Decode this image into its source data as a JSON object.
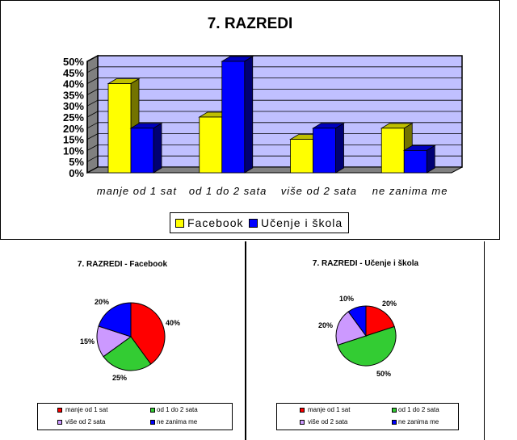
{
  "chart_data": [
    {
      "type": "bar",
      "title": "7. RAZREDI",
      "categories": [
        "manje od 1 sat",
        "od 1 do 2 sata",
        "više od 2 sata",
        "ne zanima me"
      ],
      "series": [
        {
          "name": "Facebook",
          "values": [
            40,
            25,
            15,
            20
          ],
          "color": "#ffff00"
        },
        {
          "name": "Učenje i škola",
          "values": [
            20,
            50,
            20,
            10
          ],
          "color": "#0000ff"
        }
      ],
      "ylim": [
        0,
        50
      ],
      "yticks": [
        "0%",
        "5%",
        "10%",
        "15%",
        "20%",
        "25%",
        "30%",
        "35%",
        "40%",
        "45%",
        "50%"
      ],
      "grid": true,
      "legend": "bottom"
    },
    {
      "type": "pie",
      "title": "7. RAZREDI - Facebook",
      "labels": [
        "manje od 1 sat",
        "od 1 do 2 sata",
        "više od 2 sata",
        "ne zanima me"
      ],
      "values": [
        40,
        25,
        15,
        20
      ],
      "data_labels": [
        "40%",
        "25%",
        "15%",
        "20%"
      ],
      "colors": [
        "#ff0000",
        "#33cc33",
        "#cc99ff",
        "#0000ff"
      ],
      "legend": "bottom"
    },
    {
      "type": "pie",
      "title": "7. RAZREDI - Učenje i škola",
      "labels": [
        "manje od 1 sat",
        "od 1 do 2 sata",
        "više od 2 sata",
        "ne zanima me"
      ],
      "values": [
        20,
        50,
        20,
        10
      ],
      "data_labels": [
        "20%",
        "50%",
        "20%",
        "10%"
      ],
      "colors": [
        "#ff0000",
        "#33cc33",
        "#cc99ff",
        "#0000ff"
      ],
      "legend": "bottom"
    }
  ]
}
